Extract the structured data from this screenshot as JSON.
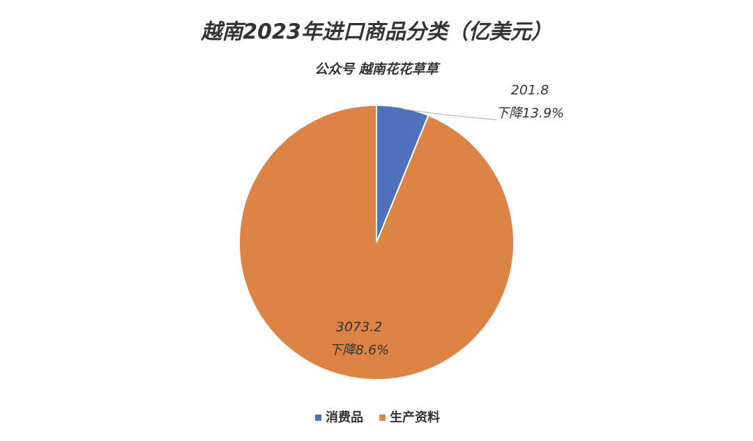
{
  "chart_data": {
    "type": "pie",
    "title": "越南2023年进口商品分类（亿美元）",
    "subtitle": "公众号 越南花花草草",
    "categories": [
      "消费品",
      "生产资料"
    ],
    "values": [
      201.8,
      3073.2
    ],
    "change_labels": [
      "下降13.9%",
      "下降8.6%"
    ],
    "colors": [
      "#4f71be",
      "#dd8344"
    ],
    "legend": "bottom"
  }
}
